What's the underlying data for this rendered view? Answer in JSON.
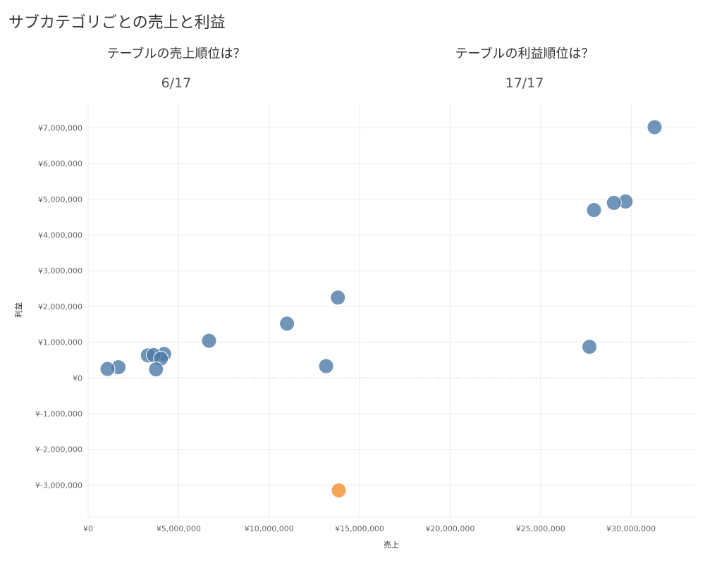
{
  "title": "サブカテゴリごとの売上と利益",
  "kpis": [
    {
      "question": "テーブルの売上順位は？",
      "value": "6/17"
    },
    {
      "question": "テーブルの利益順位は？",
      "value": "17/17"
    }
  ],
  "colors": {
    "default_point": "#4e79a7",
    "highlight_point": "#f28e2b",
    "gridline": "#ececec",
    "zero_line": "#bdbdbd"
  },
  "chart_data": {
    "type": "scatter",
    "title": "",
    "xlabel": "売上",
    "ylabel": "利益",
    "xlim": [
      0,
      33500000
    ],
    "ylim": [
      -3900000,
      7700000
    ],
    "x_ticks": [
      0,
      5000000,
      10000000,
      15000000,
      20000000,
      25000000,
      30000000
    ],
    "x_tick_labels": [
      "¥0",
      "¥5,000,000",
      "¥10,000,000",
      "¥15,000,000",
      "¥20,000,000",
      "¥25,000,000",
      "¥30,000,000"
    ],
    "y_ticks": [
      -3000000,
      -2000000,
      -1000000,
      0,
      1000000,
      2000000,
      3000000,
      4000000,
      5000000,
      6000000,
      7000000
    ],
    "y_tick_labels": [
      "¥-3,000,000",
      "¥-2,000,000",
      "¥-1,000,000",
      "¥0",
      "¥1,000,000",
      "¥2,000,000",
      "¥3,000,000",
      "¥4,000,000",
      "¥5,000,000",
      "¥6,000,000",
      "¥7,000,000"
    ],
    "grid": true,
    "points": [
      {
        "x": 31300000,
        "y": 7020000,
        "highlight": false
      },
      {
        "x": 29700000,
        "y": 4940000,
        "highlight": false
      },
      {
        "x": 29050000,
        "y": 4900000,
        "highlight": false
      },
      {
        "x": 27950000,
        "y": 4700000,
        "highlight": false
      },
      {
        "x": 27700000,
        "y": 870000,
        "highlight": false
      },
      {
        "x": 13800000,
        "y": 2250000,
        "highlight": false
      },
      {
        "x": 10990000,
        "y": 1520000,
        "highlight": false
      },
      {
        "x": 13150000,
        "y": 330000,
        "highlight": false
      },
      {
        "x": 6680000,
        "y": 1040000,
        "highlight": false
      },
      {
        "x": 4200000,
        "y": 670000,
        "highlight": false
      },
      {
        "x": 3300000,
        "y": 630000,
        "highlight": false
      },
      {
        "x": 3620000,
        "y": 640000,
        "highlight": false
      },
      {
        "x": 4020000,
        "y": 540000,
        "highlight": false
      },
      {
        "x": 3750000,
        "y": 240000,
        "highlight": false
      },
      {
        "x": 1680000,
        "y": 300000,
        "highlight": false
      },
      {
        "x": 1070000,
        "y": 250000,
        "highlight": false
      },
      {
        "x": 13850000,
        "y": -3150000,
        "highlight": true
      }
    ]
  }
}
